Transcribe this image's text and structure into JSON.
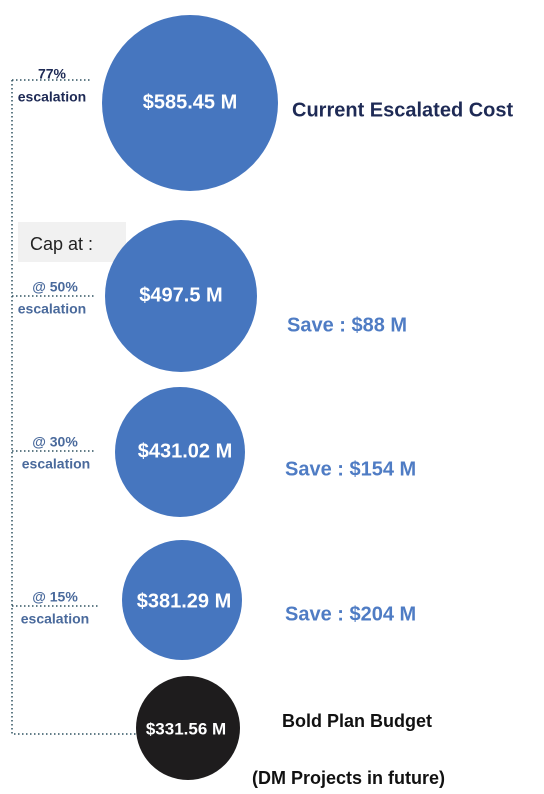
{
  "nodes": [
    {
      "amount": "$585.45 M",
      "label": "Current Escalated Cost",
      "rate": "77%",
      "rate_caption": "escalation"
    },
    {
      "amount": "$497.5 M",
      "label": "Save : $88 M",
      "rate": "@ 50%",
      "rate_caption": "escalation"
    },
    {
      "amount": "$431.02 M",
      "label": "Save : $154 M",
      "rate": "@ 30%",
      "rate_caption": "escalation"
    },
    {
      "amount": "$381.29 M",
      "label": "Save : $204 M",
      "rate": "@ 15%",
      "rate_caption": "escalation"
    },
    {
      "amount": "$331.56 M",
      "label": "Bold Plan Budget",
      "note": "(DM Projects in future)"
    }
  ],
  "cap_label": "Cap at :"
}
